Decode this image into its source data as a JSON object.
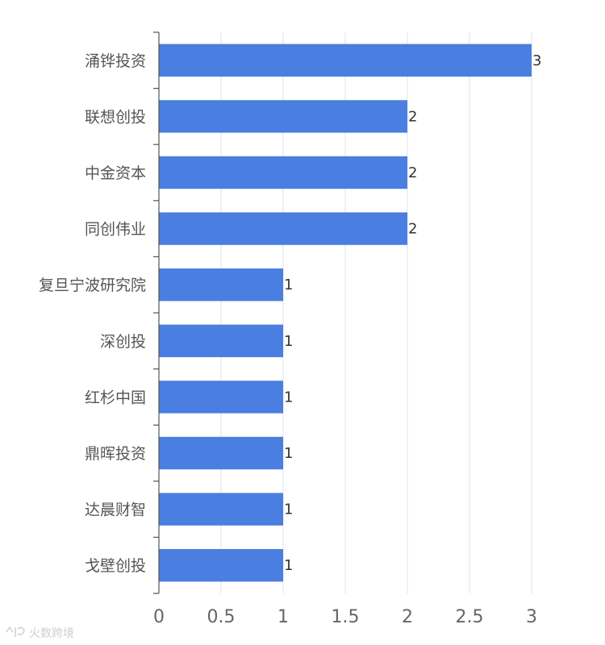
{
  "chart_data": {
    "type": "bar",
    "orientation": "horizontal",
    "categories": [
      "涌铧投资",
      "联想创投",
      "中金资本",
      "同创伟业",
      "复旦宁波研究院",
      "深创投",
      "红杉中国",
      "鼎晖投资",
      "达晨财智",
      "戈壁创投"
    ],
    "values": [
      3,
      2,
      2,
      2,
      1,
      1,
      1,
      1,
      1,
      1
    ],
    "xlim": [
      0,
      3
    ],
    "x_ticks": [
      0,
      0.5,
      1,
      1.5,
      2,
      2.5,
      3
    ],
    "x_tick_labels": [
      "0",
      "0.5",
      "1",
      "1.5",
      "2",
      "2.5",
      "3"
    ],
    "grid": "vertical",
    "data_labels": true,
    "color": "#4a7ee0"
  },
  "watermark": {
    "text": "火数跨境",
    "icon": "watermark-logo-icon"
  }
}
